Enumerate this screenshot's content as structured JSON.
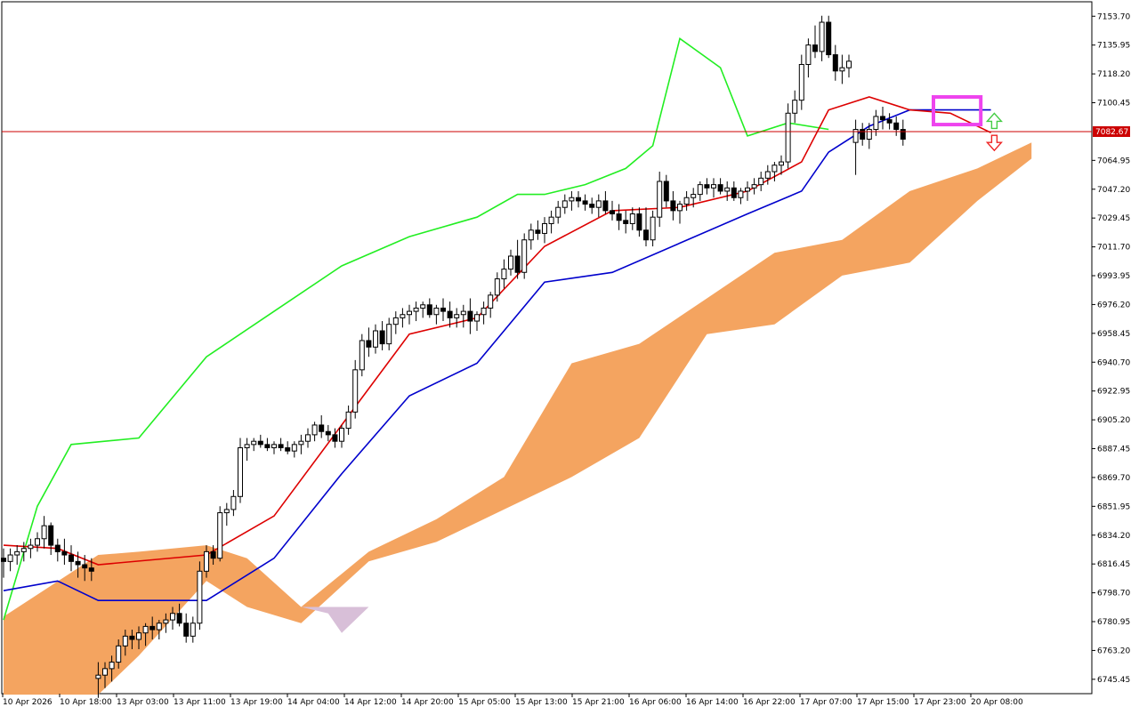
{
  "chart_data": {
    "type": "candlestick",
    "symbol_price_line": "7082.67",
    "y_ticks": [
      "7153.70",
      "7135.95",
      "7118.20",
      "7100.45",
      "7082.67",
      "7064.95",
      "7047.20",
      "7029.45",
      "7011.70",
      "6993.95",
      "6976.20",
      "6958.45",
      "6940.70",
      "6922.95",
      "6905.20",
      "6887.45",
      "6869.70",
      "6851.95",
      "6834.20",
      "6816.45",
      "6798.70",
      "6780.95",
      "6763.20",
      "6745.45"
    ],
    "x_ticks": [
      "10 Apr 2026",
      "10 Apr 18:00",
      "13 Apr 03:00",
      "13 Apr 11:00",
      "13 Apr 19:00",
      "14 Apr 04:00",
      "14 Apr 12:00",
      "14 Apr 20:00",
      "15 Apr 05:00",
      "15 Apr 13:00",
      "15 Apr 21:00",
      "16 Apr 06:00",
      "16 Apr 14:00",
      "16 Apr 22:00",
      "17 Apr 07:00",
      "17 Apr 15:00",
      "17 Apr 23:00",
      "20 Apr 08:00"
    ],
    "y_range": [
      6736.6,
      7162.6
    ],
    "grid": false,
    "indicator": "ichimoku",
    "colors": {
      "tenkan": "#dd0000",
      "kijun": "#0000cc",
      "chikou": "#22ee22",
      "cloud_bull": "#f4a460",
      "cloud_bear": "#d8bfd8",
      "price_line": "#cc0000",
      "highlight_box": "#ee44ee",
      "arrow_up": "#44cc44",
      "arrow_down": "#ee2222"
    },
    "candles": [
      [
        6820,
        6826,
        6808,
        6818
      ],
      [
        6818,
        6826,
        6812,
        6822
      ],
      [
        6822,
        6828,
        6816,
        6824
      ],
      [
        6824,
        6830,
        6818,
        6826
      ],
      [
        6826,
        6832,
        6820,
        6828
      ],
      [
        6828,
        6836,
        6824,
        6832
      ],
      [
        6832,
        6846,
        6826,
        6840
      ],
      [
        6840,
        6842,
        6822,
        6828
      ],
      [
        6828,
        6832,
        6818,
        6824
      ],
      [
        6824,
        6832,
        6816,
        6822
      ],
      [
        6822,
        6828,
        6812,
        6818
      ],
      [
        6818,
        6824,
        6808,
        6816
      ],
      [
        6816,
        6822,
        6806,
        6814
      ],
      [
        6814,
        6820,
        6806,
        6812
      ],
      [
        6746,
        6756,
        6734,
        6748
      ],
      [
        6748,
        6756,
        6740,
        6752
      ],
      [
        6752,
        6760,
        6744,
        6756
      ],
      [
        6756,
        6770,
        6752,
        6766
      ],
      [
        6766,
        6776,
        6760,
        6772
      ],
      [
        6772,
        6776,
        6764,
        6770
      ],
      [
        6770,
        6778,
        6764,
        6774
      ],
      [
        6774,
        6780,
        6766,
        6778
      ],
      [
        6778,
        6784,
        6770,
        6776
      ],
      [
        6776,
        6782,
        6770,
        6780
      ],
      [
        6780,
        6786,
        6774,
        6782
      ],
      [
        6782,
        6790,
        6776,
        6786
      ],
      [
        6786,
        6792,
        6778,
        6780
      ],
      [
        6780,
        6786,
        6768,
        6772
      ],
      [
        6772,
        6784,
        6768,
        6780
      ],
      [
        6780,
        6818,
        6776,
        6812
      ],
      [
        6812,
        6828,
        6808,
        6824
      ],
      [
        6824,
        6828,
        6816,
        6820
      ],
      [
        6820,
        6852,
        6818,
        6848
      ],
      [
        6848,
        6854,
        6840,
        6850
      ],
      [
        6850,
        6862,
        6846,
        6858
      ],
      [
        6858,
        6894,
        6854,
        6888
      ],
      [
        6888,
        6894,
        6880,
        6890
      ],
      [
        6890,
        6894,
        6886,
        6892
      ],
      [
        6892,
        6896,
        6888,
        6890
      ],
      [
        6890,
        6894,
        6886,
        6888
      ],
      [
        6888,
        6892,
        6884,
        6890
      ],
      [
        6890,
        6894,
        6886,
        6888
      ],
      [
        6888,
        6892,
        6884,
        6886
      ],
      [
        6886,
        6892,
        6882,
        6890
      ],
      [
        6890,
        6896,
        6884,
        6892
      ],
      [
        6892,
        6900,
        6888,
        6896
      ],
      [
        6896,
        6904,
        6892,
        6902
      ],
      [
        6902,
        6908,
        6894,
        6898
      ],
      [
        6898,
        6902,
        6892,
        6896
      ],
      [
        6896,
        6900,
        6888,
        6892
      ],
      [
        6892,
        6902,
        6888,
        6900
      ],
      [
        6900,
        6914,
        6896,
        6910
      ],
      [
        6910,
        6942,
        6906,
        6936
      ],
      [
        6936,
        6958,
        6932,
        6954
      ],
      [
        6954,
        6962,
        6944,
        6950
      ],
      [
        6950,
        6964,
        6946,
        6960
      ],
      [
        6960,
        6966,
        6948,
        6952
      ],
      [
        6952,
        6968,
        6948,
        6964
      ],
      [
        6964,
        6972,
        6958,
        6968
      ],
      [
        6968,
        6974,
        6962,
        6970
      ],
      [
        6970,
        6976,
        6964,
        6972
      ],
      [
        6972,
        6978,
        6966,
        6974
      ],
      [
        6974,
        6978,
        6968,
        6976
      ],
      [
        6976,
        6980,
        6968,
        6970
      ],
      [
        6970,
        6976,
        6964,
        6974
      ],
      [
        6974,
        6980,
        6966,
        6972
      ],
      [
        6972,
        6978,
        6962,
        6968
      ],
      [
        6968,
        6974,
        6962,
        6970
      ],
      [
        6970,
        6976,
        6962,
        6972
      ],
      [
        6972,
        6980,
        6958,
        6966
      ],
      [
        6966,
        6972,
        6960,
        6970
      ],
      [
        6970,
        6978,
        6964,
        6974
      ],
      [
        6974,
        6984,
        6968,
        6982
      ],
      [
        6982,
        6996,
        6978,
        6992
      ],
      [
        6992,
        7004,
        6986,
        6998
      ],
      [
        6998,
        7010,
        6994,
        7006
      ],
      [
        7006,
        7016,
        6992,
        6996
      ],
      [
        6996,
        7020,
        6992,
        7016
      ],
      [
        7016,
        7026,
        7010,
        7022
      ],
      [
        7022,
        7028,
        7016,
        7020
      ],
      [
        7020,
        7030,
        7014,
        7026
      ],
      [
        7026,
        7034,
        7020,
        7030
      ],
      [
        7030,
        7040,
        7026,
        7036
      ],
      [
        7036,
        7044,
        7032,
        7040
      ],
      [
        7040,
        7046,
        7034,
        7042
      ],
      [
        7042,
        7046,
        7036,
        7040
      ],
      [
        7040,
        7044,
        7034,
        7038
      ],
      [
        7038,
        7042,
        7032,
        7036
      ],
      [
        7036,
        7044,
        7030,
        7040
      ],
      [
        7040,
        7046,
        7032,
        7034
      ],
      [
        7034,
        7040,
        7028,
        7032
      ],
      [
        7032,
        7038,
        7022,
        7028
      ],
      [
        7028,
        7034,
        7020,
        7026
      ],
      [
        7026,
        7036,
        7022,
        7032
      ],
      [
        7032,
        7036,
        7018,
        7022
      ],
      [
        7022,
        7036,
        7012,
        7016
      ],
      [
        7016,
        7034,
        7012,
        7030
      ],
      [
        7030,
        7058,
        7024,
        7052
      ],
      [
        7052,
        7056,
        7036,
        7040
      ],
      [
        7040,
        7046,
        7028,
        7034
      ],
      [
        7034,
        7040,
        7026,
        7038
      ],
      [
        7038,
        7046,
        7034,
        7042
      ],
      [
        7042,
        7048,
        7036,
        7044
      ],
      [
        7044,
        7052,
        7040,
        7050
      ],
      [
        7050,
        7054,
        7044,
        7048
      ],
      [
        7048,
        7054,
        7042,
        7050
      ],
      [
        7050,
        7054,
        7044,
        7046
      ],
      [
        7046,
        7052,
        7040,
        7048
      ],
      [
        7048,
        7052,
        7040,
        7042
      ],
      [
        7042,
        7048,
        7038,
        7046
      ],
      [
        7046,
        7052,
        7040,
        7048
      ],
      [
        7048,
        7054,
        7044,
        7050
      ],
      [
        7050,
        7058,
        7046,
        7054
      ],
      [
        7054,
        7062,
        7050,
        7058
      ],
      [
        7058,
        7064,
        7052,
        7062
      ],
      [
        7062,
        7068,
        7056,
        7064
      ],
      [
        7064,
        7100,
        7060,
        7094
      ],
      [
        7094,
        7108,
        7088,
        7102
      ],
      [
        7102,
        7130,
        7096,
        7124
      ],
      [
        7124,
        7140,
        7116,
        7136
      ],
      [
        7136,
        7148,
        7128,
        7132
      ],
      [
        7132,
        7154,
        7126,
        7150
      ],
      [
        7150,
        7154,
        7128,
        7130
      ],
      [
        7130,
        7136,
        7114,
        7120
      ],
      [
        7120,
        7130,
        7112,
        7122
      ],
      [
        7122,
        7130,
        7116,
        7126
      ],
      [
        7076,
        7090,
        7056,
        7084
      ],
      [
        7084,
        7088,
        7074,
        7078
      ],
      [
        7078,
        7088,
        7072,
        7084
      ],
      [
        7084,
        7096,
        7080,
        7092
      ],
      [
        7092,
        7098,
        7084,
        7090
      ],
      [
        7090,
        7094,
        7084,
        7088
      ],
      [
        7088,
        7092,
        7080,
        7084
      ],
      [
        7084,
        7090,
        7074,
        7078
      ]
    ],
    "tenkan": [
      [
        0,
        6828
      ],
      [
        8,
        6826
      ],
      [
        14,
        6816
      ],
      [
        30,
        6822
      ],
      [
        40,
        6846
      ],
      [
        50,
        6902
      ],
      [
        60,
        6958
      ],
      [
        70,
        6968
      ],
      [
        80,
        7012
      ],
      [
        90,
        7034
      ],
      [
        100,
        7036
      ],
      [
        110,
        7046
      ],
      [
        118,
        7064
      ],
      [
        122,
        7096
      ],
      [
        128,
        7104
      ],
      [
        134,
        7096
      ],
      [
        140,
        7094
      ],
      [
        146,
        7082
      ]
    ],
    "kijun": [
      [
        0,
        6800
      ],
      [
        8,
        6806
      ],
      [
        14,
        6794
      ],
      [
        30,
        6794
      ],
      [
        40,
        6820
      ],
      [
        50,
        6872
      ],
      [
        60,
        6920
      ],
      [
        70,
        6940
      ],
      [
        80,
        6990
      ],
      [
        90,
        6996
      ],
      [
        100,
        7014
      ],
      [
        110,
        7032
      ],
      [
        118,
        7046
      ],
      [
        122,
        7070
      ],
      [
        128,
        7086
      ],
      [
        134,
        7096
      ],
      [
        140,
        7096
      ],
      [
        146,
        7096
      ]
    ],
    "chikou": [
      [
        0,
        6782
      ],
      [
        5,
        6852
      ],
      [
        10,
        6890
      ],
      [
        20,
        6894
      ],
      [
        30,
        6944
      ],
      [
        40,
        6972
      ],
      [
        50,
        7000
      ],
      [
        60,
        7018
      ],
      [
        70,
        7030
      ],
      [
        76,
        7044
      ],
      [
        80,
        7044
      ],
      [
        86,
        7050
      ],
      [
        92,
        7060
      ],
      [
        96,
        7074
      ],
      [
        100,
        7140
      ],
      [
        106,
        7122
      ],
      [
        110,
        7080
      ],
      [
        116,
        7088
      ],
      [
        122,
        7084
      ]
    ],
    "cloud_top": [
      [
        0,
        6784
      ],
      [
        14,
        6822
      ],
      [
        20,
        6824
      ],
      [
        30,
        6828
      ],
      [
        36,
        6820
      ],
      [
        44,
        6790
      ],
      [
        54,
        6824
      ],
      [
        64,
        6844
      ],
      [
        74,
        6870
      ],
      [
        84,
        6940
      ],
      [
        94,
        6952
      ],
      [
        104,
        6980
      ],
      [
        114,
        7008
      ],
      [
        124,
        7016
      ],
      [
        134,
        7046
      ],
      [
        144,
        7060
      ],
      [
        152,
        7076
      ]
    ],
    "cloud_bottom": [
      [
        0,
        6736
      ],
      [
        14,
        6736
      ],
      [
        20,
        6760
      ],
      [
        30,
        6806
      ],
      [
        36,
        6790
      ],
      [
        44,
        6780
      ],
      [
        54,
        6818
      ],
      [
        64,
        6830
      ],
      [
        74,
        6850
      ],
      [
        84,
        6870
      ],
      [
        94,
        6894
      ],
      [
        104,
        6958
      ],
      [
        114,
        6964
      ],
      [
        124,
        6994
      ],
      [
        134,
        7002
      ],
      [
        144,
        7040
      ],
      [
        152,
        7066
      ]
    ]
  }
}
